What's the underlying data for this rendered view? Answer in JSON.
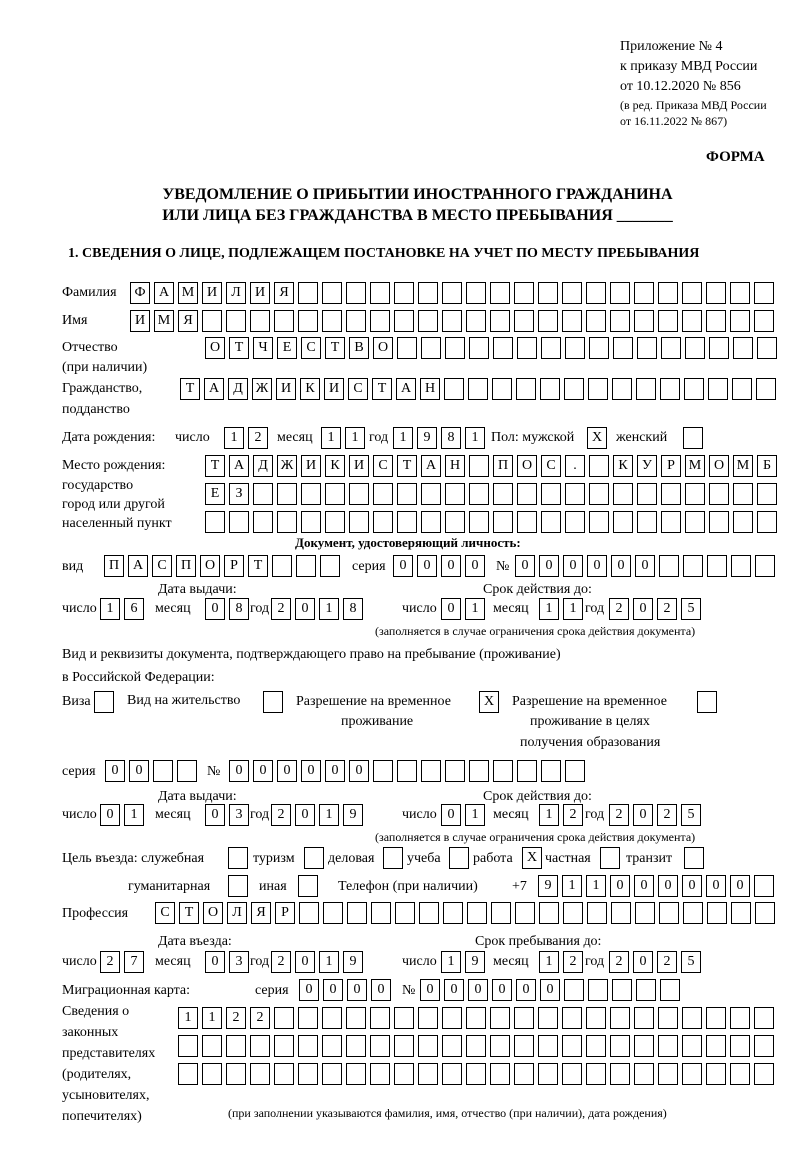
{
  "header": {
    "appendix": "Приложение № 4",
    "order": "к приказу МВД России",
    "order_date": "от 10.12.2020 № 856",
    "edition1": "(в ред. Приказа МВД России",
    "edition2": "от 16.11.2022 № 867)",
    "form": "ФОРМА",
    "title1": "УВЕДОМЛЕНИЕ О ПРИБЫТИИ ИНОСТРАННОГО ГРАЖДАНИНА",
    "title2": "ИЛИ ЛИЦА БЕЗ ГРАЖДАНСТВА В МЕСТО ПРЕБЫВАНИЯ _______"
  },
  "section1": {
    "heading": "1. СВЕДЕНИЯ О ЛИЦЕ, ПОДЛЕЖАЩЕМ ПОСТАНОВКЕ НА УЧЕТ ПО МЕСТУ ПРЕБЫВАНИЯ",
    "surname": {
      "label": "Фамилия",
      "value": "ФАМИЛИЯ"
    },
    "name": {
      "label": "Имя",
      "value": "ИМЯ"
    },
    "patronymic": {
      "label": "Отчество",
      "label2": "(при наличии)",
      "value": "ОТЧЕСТВО"
    },
    "citizenship": {
      "label": "Гражданство,",
      "label2": "подданство",
      "value": "ТАДЖИКИСТАН"
    },
    "birth": {
      "label": "Дата рождения:",
      "day_label": "число",
      "day": "12",
      "month_label": "месяц",
      "month": "11",
      "year_label": "год",
      "year": "1981",
      "sex_label": "Пол: мужской",
      "male": "X",
      "female_label": "женский",
      "female": ""
    },
    "birthplace": {
      "label1": "Место рождения:",
      "label2": "государство",
      "label3": "город или другой",
      "label4": "населенный пункт",
      "line1": "ТАДЖИКИСТАН ПОС. КУРМОМБ",
      "line2": "ЕЗ",
      "line3": ""
    },
    "id_doc": {
      "heading": "Документ, удостоверяющий личность:",
      "type_label": "вид",
      "type": "ПАСПОРТ",
      "series_label": "серия",
      "series": "0000",
      "number_label": "№",
      "number": "000000",
      "issue_label": "Дата выдачи:",
      "valid_label": "Срок действия до:",
      "issue": {
        "day_label": "число",
        "day": "16",
        "month_label": "месяц",
        "month": "08",
        "year_label": "год",
        "year": "2018"
      },
      "valid": {
        "day_label": "число",
        "day": "01",
        "month_label": "месяц",
        "month": "11",
        "year_label": "год",
        "year": "2025"
      },
      "note": "(заполняется в случае ограничения срока действия документа)"
    },
    "stay_doc": {
      "heading1": "Вид и реквизиты документа, подтверждающего право на пребывание (проживание)",
      "heading2": "в Российской Федерации:",
      "visa_label": "Виза",
      "visa": "",
      "residence_label": "Вид на жительство",
      "residence": "",
      "temp_label1": "Разрешение на временное",
      "temp_label2": "проживание",
      "temp": "X",
      "edu_label1": "Разрешение на временное",
      "edu_label2": "проживание в целях",
      "edu_label3": "получения образования",
      "edu": "",
      "series_label": "серия",
      "series": "00",
      "number_label": "№",
      "number": "000000",
      "issue_label": "Дата выдачи:",
      "valid_label": "Срок действия до:",
      "issue": {
        "day_label": "число",
        "day": "01",
        "month_label": "месяц",
        "month": "03",
        "year_label": "год",
        "year": "2019"
      },
      "valid": {
        "day_label": "число",
        "day": "01",
        "month_label": "месяц",
        "month": "12",
        "year_label": "год",
        "year": "2025"
      },
      "note": "(заполняется в случае ограничения срока действия документа)"
    },
    "purpose": {
      "label": "Цель въезда: служебная",
      "official": "",
      "tourism_label": "туризм",
      "tourism": "",
      "business_label": "деловая",
      "business": "",
      "study_label": "учеба",
      "study": "",
      "work_label": "работа",
      "work": "X",
      "private_label": "частная",
      "private": "",
      "transit_label": "транзит",
      "transit": "",
      "humanitarian_label": "гуманитарная",
      "humanitarian": "",
      "other_label": "иная",
      "other": ""
    },
    "phone": {
      "label": "Телефон (при наличии)",
      "prefix": "+7",
      "value": "911000000"
    },
    "profession": {
      "label": "Профессия",
      "value": "СТОЛЯР"
    },
    "entry": {
      "entry_label": "Дата въезда:",
      "stay_label": "Срок пребывания до:",
      "entry": {
        "day_label": "число",
        "day": "27",
        "month_label": "месяц",
        "month": "03",
        "year_label": "год",
        "year": "2019"
      },
      "stay": {
        "day_label": "число",
        "day": "19",
        "month_label": "месяц",
        "month": "12",
        "year_label": "год",
        "year": "2025"
      }
    },
    "migration_card": {
      "label": "Миграционная карта:",
      "series_label": "серия",
      "series": "0000",
      "number_label": "№",
      "number": "000000"
    },
    "representatives": {
      "label1": "Сведения о",
      "label2": "законных",
      "label3": "представителях",
      "label4": "(родителях,",
      "label5": "усыновителях,",
      "label6": "попечителях)",
      "line1": "1122",
      "line2": "",
      "line3": "",
      "note": "(при заполнении указываются фамилия, имя, отчество (при наличии), дата рождения)"
    }
  }
}
